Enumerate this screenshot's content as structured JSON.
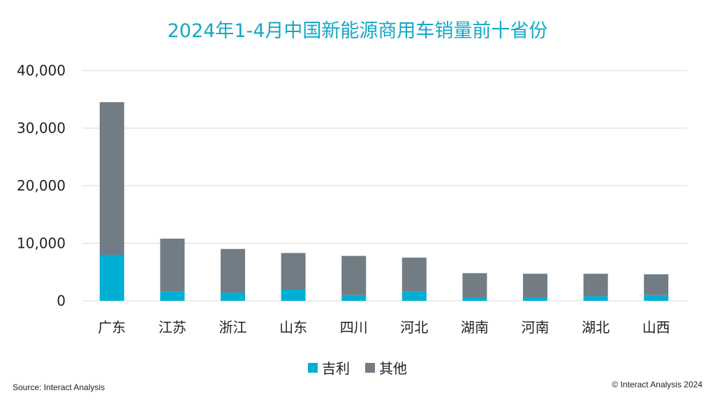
{
  "title": "2024年1-4月中国新能源商用车销量前十省份",
  "source": "Source: Interact Analysis",
  "copyright": "© Interact Analysis 2024",
  "colors": {
    "geely": "#00AFD4",
    "others": "#727C84",
    "grid": "#D9D9D9"
  },
  "chart_data": {
    "type": "bar",
    "stacked": true,
    "title": "2024年1-4月中国新能源商用车销量前十省份",
    "categories": [
      "广东",
      "江苏",
      "浙江",
      "山东",
      "四川",
      "河北",
      "湖南",
      "河南",
      "湖北",
      "山西"
    ],
    "series": [
      {
        "name": "吉利",
        "color": "#00AFD4",
        "values": [
          8000,
          1600,
          1400,
          2000,
          1000,
          1600,
          600,
          600,
          800,
          1000
        ]
      },
      {
        "name": "其他",
        "color": "#727C84",
        "values": [
          26500,
          9200,
          7600,
          6300,
          6800,
          5900,
          4200,
          4100,
          3900,
          3600
        ]
      }
    ],
    "ylim": [
      0,
      40000
    ],
    "yticks": [
      "0",
      "10,000",
      "20,000",
      "30,000",
      "40,000"
    ],
    "ytick_values": [
      0,
      10000,
      20000,
      30000,
      40000
    ],
    "grid": true,
    "legend": "bottom-center",
    "xlabel": "",
    "ylabel": ""
  }
}
